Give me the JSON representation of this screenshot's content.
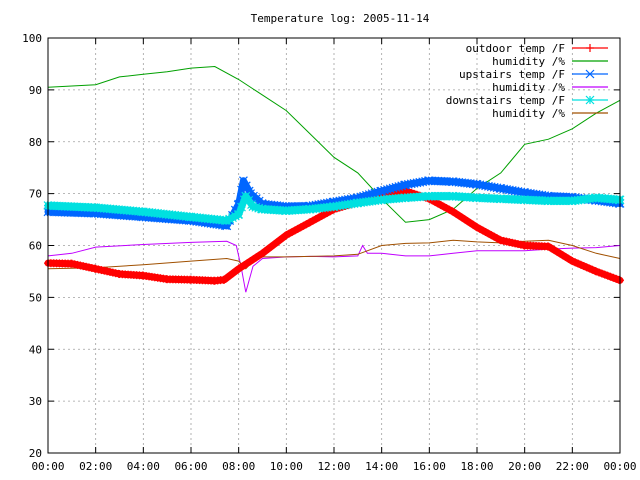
{
  "chart_data": {
    "type": "line",
    "title": "Temperature log: 2005-11-14",
    "xlabel": "",
    "ylabel": "",
    "ylim": [
      20,
      100
    ],
    "xlim": [
      0,
      24
    ],
    "x_tick_labels": [
      "00:00",
      "02:00",
      "04:00",
      "06:00",
      "08:00",
      "10:00",
      "12:00",
      "14:00",
      "16:00",
      "18:00",
      "20:00",
      "22:00",
      "00:00"
    ],
    "y_tick_labels": [
      "20",
      "30",
      "40",
      "50",
      "60",
      "70",
      "80",
      "90",
      "100"
    ],
    "grid": true,
    "legend_position": "top-right",
    "series": [
      {
        "name": "outdoor temp /F",
        "color": "#ff0000",
        "marker": "plus",
        "points": [
          [
            0,
            56.6
          ],
          [
            1,
            56.5
          ],
          [
            2,
            55.5
          ],
          [
            3,
            54.5
          ],
          [
            4,
            54.2
          ],
          [
            5,
            53.5
          ],
          [
            6,
            53.4
          ],
          [
            7,
            53.2
          ],
          [
            7.4,
            53.4
          ],
          [
            8,
            55.5
          ],
          [
            8.5,
            57
          ],
          [
            9,
            58.5
          ],
          [
            10,
            62
          ],
          [
            11,
            64.5
          ],
          [
            12,
            67
          ],
          [
            13,
            68.3
          ],
          [
            14,
            69.2
          ],
          [
            15,
            70.5
          ],
          [
            16,
            69
          ],
          [
            17,
            66.5
          ],
          [
            18,
            63.5
          ],
          [
            19,
            61
          ],
          [
            20,
            60
          ],
          [
            21,
            59.8
          ],
          [
            22,
            57
          ],
          [
            23,
            55
          ],
          [
            24,
            53.3
          ]
        ]
      },
      {
        "name": "humidity /%",
        "color": "#00a000",
        "marker": "none",
        "points": [
          [
            0,
            90.5
          ],
          [
            2,
            91
          ],
          [
            3,
            92.5
          ],
          [
            4,
            93
          ],
          [
            5,
            93.5
          ],
          [
            6,
            94.2
          ],
          [
            7,
            94.5
          ],
          [
            8,
            92
          ],
          [
            9,
            89
          ],
          [
            10,
            86
          ],
          [
            11,
            81.5
          ],
          [
            12,
            77
          ],
          [
            13,
            74
          ],
          [
            14,
            69
          ],
          [
            15,
            64.5
          ],
          [
            16,
            65
          ],
          [
            17,
            67
          ],
          [
            18,
            71
          ],
          [
            19,
            74
          ],
          [
            20,
            79.5
          ],
          [
            21,
            80.5
          ],
          [
            22,
            82.5
          ],
          [
            23,
            85.5
          ],
          [
            24,
            88
          ]
        ]
      },
      {
        "name": "upstairs temp /F",
        "color": "#0066ff",
        "marker": "x",
        "points": [
          [
            0,
            66.5
          ],
          [
            2,
            66.2
          ],
          [
            4,
            65.5
          ],
          [
            6,
            64.8
          ],
          [
            7.5,
            63.8
          ],
          [
            8,
            68
          ],
          [
            8.2,
            72.5
          ],
          [
            8.5,
            70
          ],
          [
            9,
            68
          ],
          [
            10,
            67.5
          ],
          [
            11,
            67.6
          ],
          [
            12,
            68.4
          ],
          [
            13,
            69.2
          ],
          [
            14,
            70.5
          ],
          [
            15,
            71.7
          ],
          [
            16,
            72.5
          ],
          [
            17,
            72.3
          ],
          [
            18,
            71.8
          ],
          [
            19,
            71
          ],
          [
            20,
            70.2
          ],
          [
            21,
            69.5
          ],
          [
            22,
            69.3
          ],
          [
            23,
            68.7
          ],
          [
            24,
            68.1
          ]
        ]
      },
      {
        "name": "humidity /%",
        "color": "#c000ff",
        "marker": "none",
        "points": [
          [
            0,
            58
          ],
          [
            1,
            58.5
          ],
          [
            2,
            59.7
          ],
          [
            4,
            60.2
          ],
          [
            6,
            60.6
          ],
          [
            7.5,
            60.8
          ],
          [
            7.9,
            60
          ],
          [
            8.1,
            56
          ],
          [
            8.3,
            51
          ],
          [
            8.6,
            56
          ],
          [
            9,
            57.5
          ],
          [
            10,
            57.8
          ],
          [
            11,
            57.9
          ],
          [
            12,
            57.8
          ],
          [
            13,
            58
          ],
          [
            13.2,
            60
          ],
          [
            13.4,
            58.5
          ],
          [
            14,
            58.5
          ],
          [
            15,
            58
          ],
          [
            16,
            58
          ],
          [
            17,
            58.5
          ],
          [
            18,
            59
          ],
          [
            19,
            59
          ],
          [
            20,
            59
          ],
          [
            21,
            59.3
          ],
          [
            22,
            59.5
          ],
          [
            23,
            59.6
          ],
          [
            24,
            60
          ]
        ]
      },
      {
        "name": "downstairs temp /F",
        "color": "#00e0e0",
        "marker": "star",
        "points": [
          [
            0,
            67.7
          ],
          [
            2,
            67.3
          ],
          [
            4,
            66.5
          ],
          [
            6,
            65.5
          ],
          [
            7.5,
            64.8
          ],
          [
            8,
            66
          ],
          [
            8.3,
            69.5
          ],
          [
            8.6,
            67.5
          ],
          [
            9,
            67
          ],
          [
            10,
            66.7
          ],
          [
            11,
            67
          ],
          [
            12,
            67.5
          ],
          [
            13,
            68.2
          ],
          [
            14,
            68.8
          ],
          [
            15,
            69.2
          ],
          [
            16,
            69.5
          ],
          [
            17,
            69.5
          ],
          [
            18,
            69.2
          ],
          [
            19,
            69
          ],
          [
            20,
            68.8
          ],
          [
            21,
            68.6
          ],
          [
            22,
            68.6
          ],
          [
            23,
            69.2
          ],
          [
            24,
            68.8
          ]
        ]
      },
      {
        "name": "humidity /%",
        "color": "#a05000",
        "marker": "none",
        "points": [
          [
            0,
            55.5
          ],
          [
            2,
            55.7
          ],
          [
            4,
            56.3
          ],
          [
            6,
            57
          ],
          [
            7.5,
            57.5
          ],
          [
            8,
            57
          ],
          [
            8.3,
            55.5
          ],
          [
            8.6,
            57
          ],
          [
            9,
            57.8
          ],
          [
            10,
            57.8
          ],
          [
            12,
            58
          ],
          [
            13,
            58.3
          ],
          [
            14,
            60
          ],
          [
            15,
            60.4
          ],
          [
            16,
            60.5
          ],
          [
            17,
            61
          ],
          [
            18,
            60.7
          ],
          [
            19,
            60.5
          ],
          [
            20,
            60.8
          ],
          [
            21,
            61
          ],
          [
            22,
            60
          ],
          [
            23,
            58.5
          ],
          [
            24,
            57.5
          ]
        ]
      }
    ]
  }
}
